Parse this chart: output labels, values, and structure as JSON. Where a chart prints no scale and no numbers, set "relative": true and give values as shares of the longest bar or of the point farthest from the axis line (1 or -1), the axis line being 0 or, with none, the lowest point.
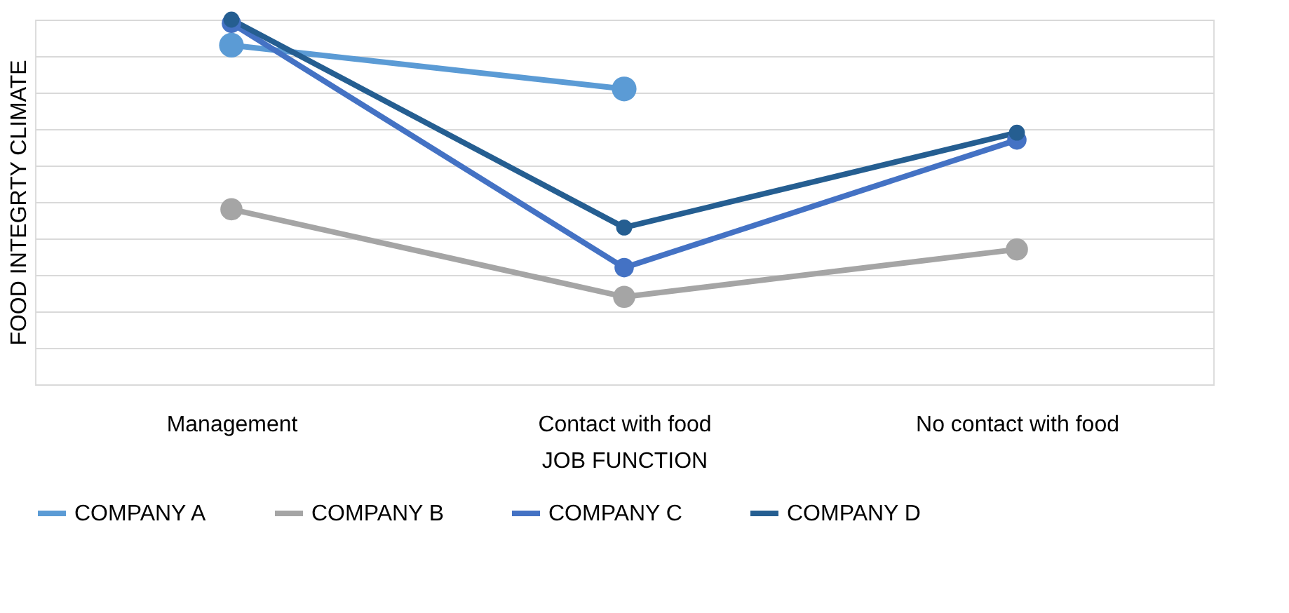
{
  "chart_data": {
    "type": "line",
    "relative": true,
    "xlabel": "JOB FUNCTION",
    "ylabel": "FOOD INTEGRTY CLIMATE",
    "categories": [
      "Management",
      "Contact with food",
      "No contact with food"
    ],
    "series": [
      {
        "name": "COMPANY A",
        "color": "#5b9bd5",
        "values": [
          0.93,
          0.81,
          null
        ]
      },
      {
        "name": "COMPANY B",
        "color": "#a5a5a5",
        "values": [
          0.48,
          0.24,
          0.37
        ]
      },
      {
        "name": "COMPANY C",
        "color": "#4472c4",
        "values": [
          0.99,
          0.32,
          0.67
        ]
      },
      {
        "name": "COMPANY D",
        "color": "#255e91",
        "values": [
          1,
          0.43,
          0.69
        ]
      }
    ],
    "grid": "y",
    "legend": "bottom",
    "marker": "circle",
    "line_style": "solid"
  }
}
